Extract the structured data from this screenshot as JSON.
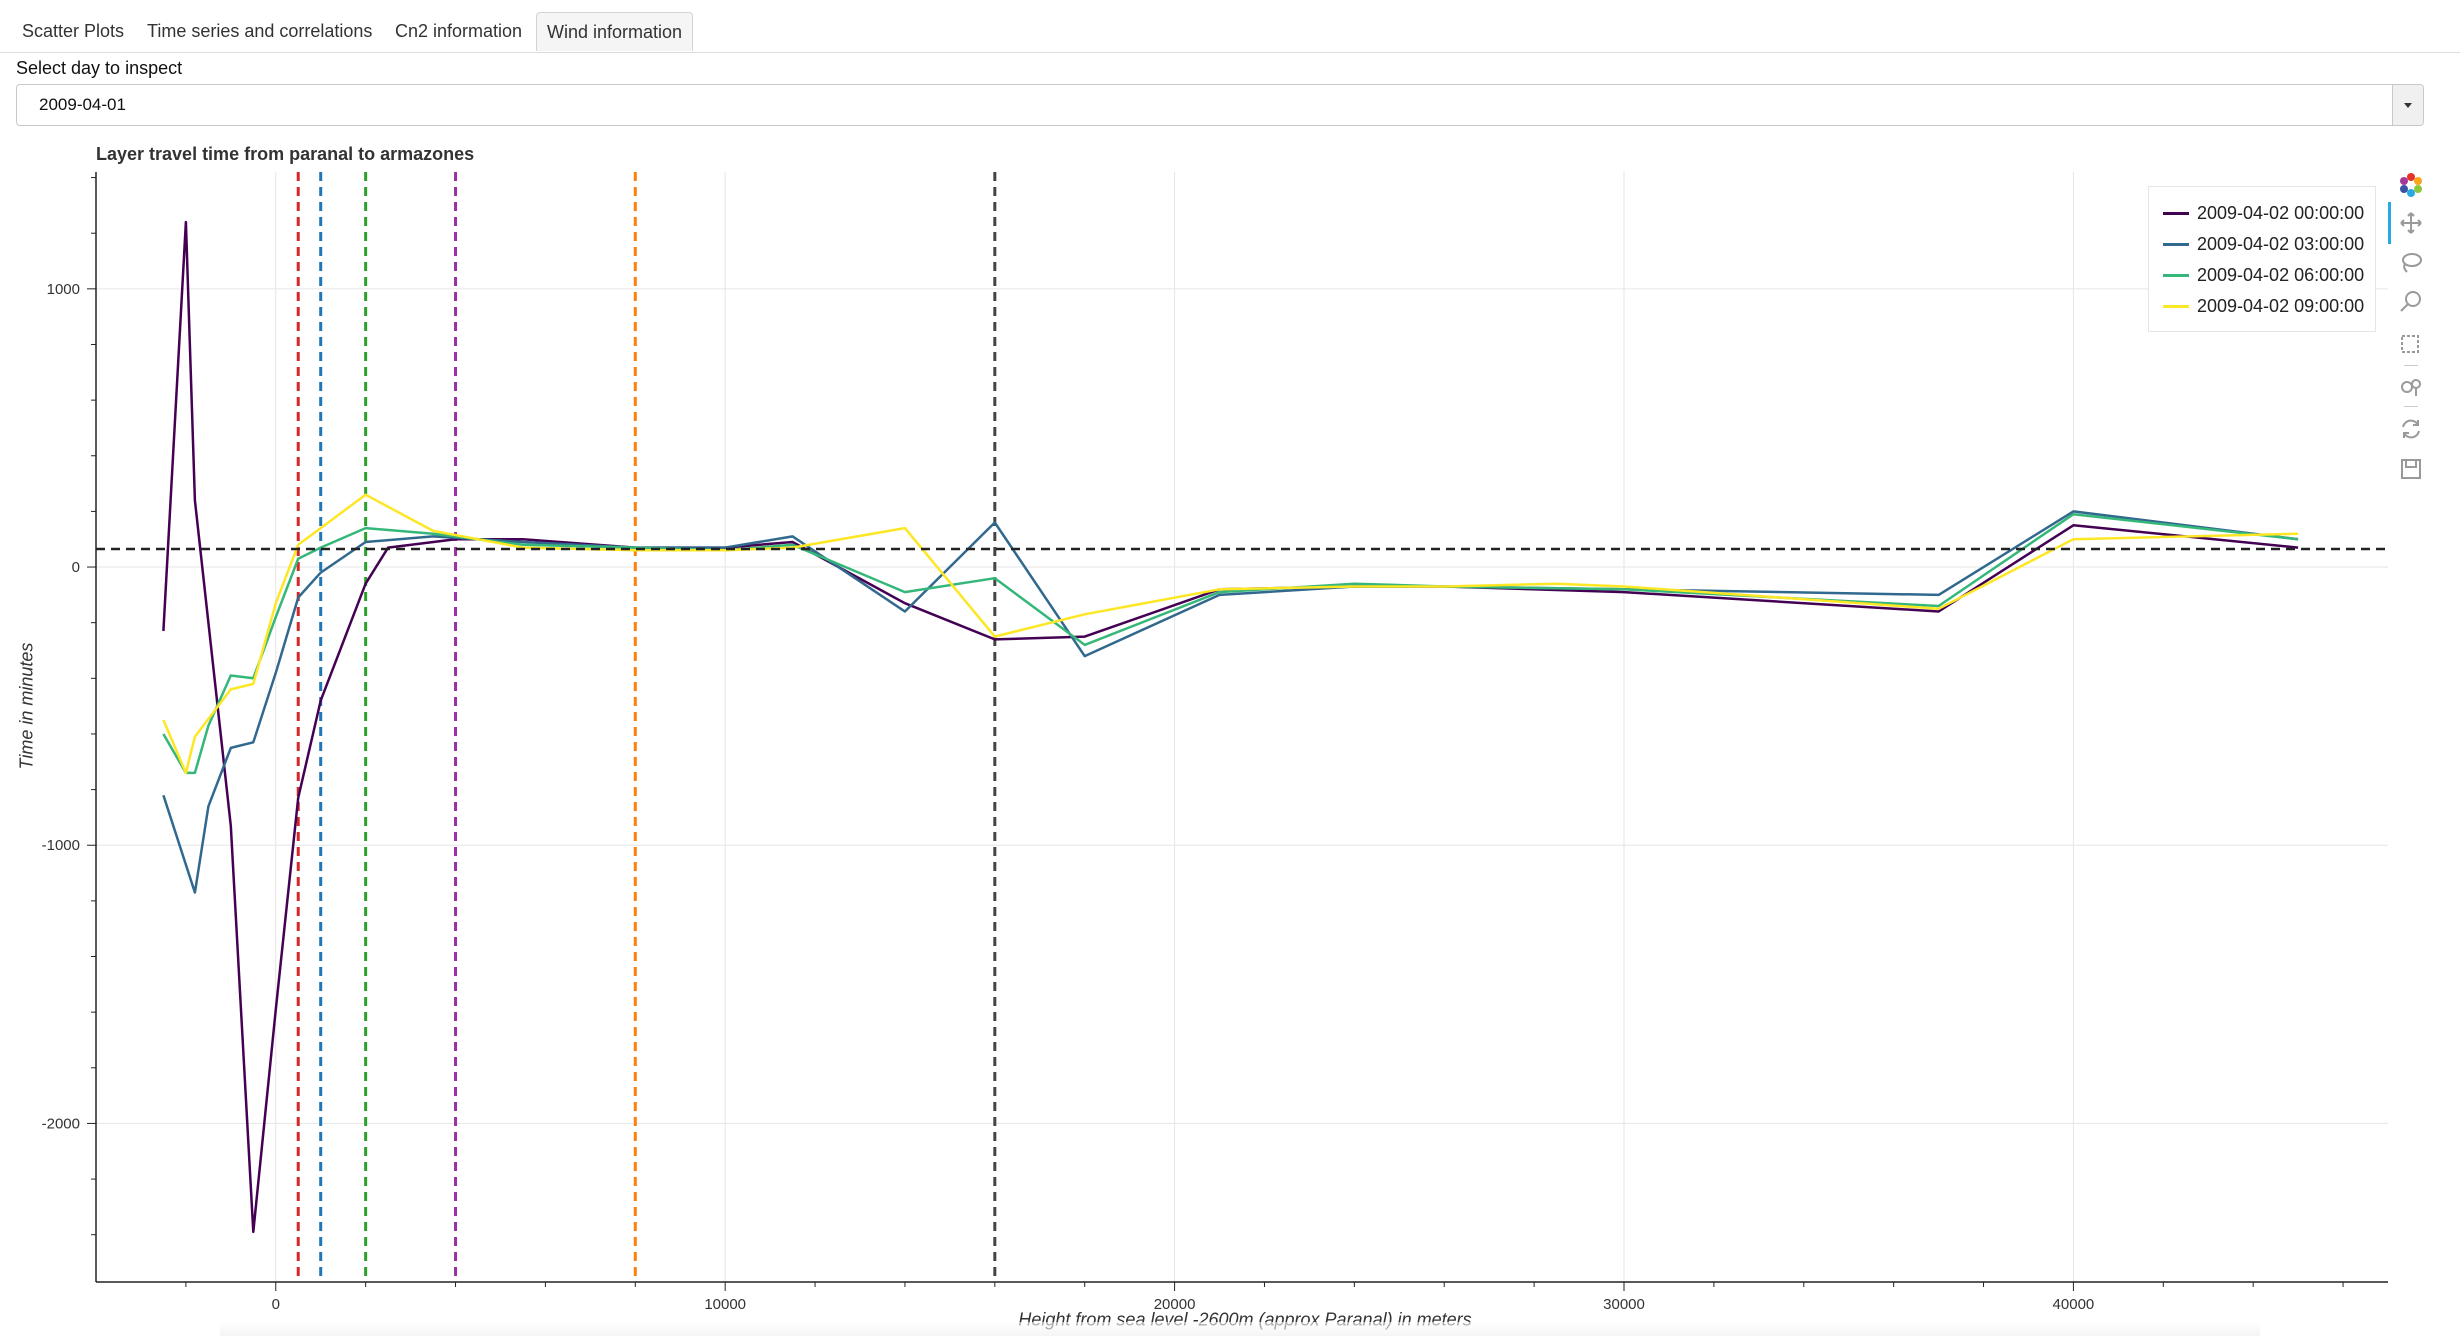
{
  "tabs": [
    {
      "label": "Scatter Plots",
      "active": false
    },
    {
      "label": "Time series and correlations",
      "active": false
    },
    {
      "label": "Cn2 information",
      "active": false
    },
    {
      "label": "Wind information",
      "active": true
    }
  ],
  "select": {
    "label": "Select day to inspect",
    "value": "2009-04-01"
  },
  "toolbar": {
    "tools": [
      "bokeh-logo-icon",
      "pan-icon",
      "lasso-select-icon",
      "wheel-zoom-icon",
      "box-select-icon",
      "tap-icon",
      "reset-icon",
      "save-icon"
    ]
  },
  "chart_data": {
    "type": "line",
    "title": "Layer travel time from paranal to armazones",
    "xlabel": "Height from sea level -2600m (approx Paranal) in meters",
    "ylabel": "Time in minutes",
    "xlim": [
      -4000,
      47000
    ],
    "ylim": [
      -2570,
      1420
    ],
    "x_ticks": [
      0,
      10000,
      20000,
      30000,
      40000
    ],
    "y_ticks": [
      1000,
      0,
      -1000,
      -2000
    ],
    "grid": true,
    "legend_position": "top-right",
    "series": [
      {
        "name": "2009-04-02 00:00:00",
        "color": "#440154",
        "points": [
          [
            -2500,
            -230
          ],
          [
            -2000,
            1240
          ],
          [
            -1800,
            240
          ],
          [
            -1000,
            -930
          ],
          [
            -500,
            -2390
          ],
          [
            0,
            -1590
          ],
          [
            500,
            -830
          ],
          [
            1000,
            -480
          ],
          [
            2000,
            -60
          ],
          [
            2500,
            70
          ],
          [
            4000,
            100
          ],
          [
            5500,
            100
          ],
          [
            8000,
            70
          ],
          [
            10000,
            70
          ],
          [
            11500,
            90
          ],
          [
            14000,
            -130
          ],
          [
            16000,
            -260
          ],
          [
            18000,
            -250
          ],
          [
            21000,
            -80
          ],
          [
            24000,
            -70
          ],
          [
            26000,
            -70
          ],
          [
            30000,
            -90
          ],
          [
            37000,
            -160
          ],
          [
            40000,
            150
          ],
          [
            45000,
            70
          ]
        ]
      },
      {
        "name": "2009-04-02 03:00:00",
        "color": "#31688e",
        "points": [
          [
            -2500,
            -820
          ],
          [
            -1800,
            -1170
          ],
          [
            -1500,
            -860
          ],
          [
            -1000,
            -650
          ],
          [
            -500,
            -630
          ],
          [
            0,
            -380
          ],
          [
            500,
            -110
          ],
          [
            1000,
            -20
          ],
          [
            2000,
            90
          ],
          [
            3500,
            110
          ],
          [
            5500,
            90
          ],
          [
            8000,
            70
          ],
          [
            10000,
            70
          ],
          [
            11500,
            110
          ],
          [
            14000,
            -160
          ],
          [
            16000,
            160
          ],
          [
            18000,
            -320
          ],
          [
            21000,
            -100
          ],
          [
            24000,
            -70
          ],
          [
            26000,
            -70
          ],
          [
            30000,
            -80
          ],
          [
            37000,
            -100
          ],
          [
            40000,
            200
          ],
          [
            45000,
            100
          ]
        ]
      },
      {
        "name": "2009-04-02 06:00:00",
        "color": "#35b779",
        "points": [
          [
            -2500,
            -600
          ],
          [
            -2000,
            -740
          ],
          [
            -1800,
            -740
          ],
          [
            -1500,
            -570
          ],
          [
            -1000,
            -390
          ],
          [
            -500,
            -400
          ],
          [
            0,
            -180
          ],
          [
            500,
            30
          ],
          [
            1000,
            70
          ],
          [
            2000,
            140
          ],
          [
            3500,
            120
          ],
          [
            5500,
            80
          ],
          [
            8000,
            70
          ],
          [
            10000,
            60
          ],
          [
            11500,
            80
          ],
          [
            14000,
            -90
          ],
          [
            16000,
            -40
          ],
          [
            18000,
            -280
          ],
          [
            21000,
            -90
          ],
          [
            24000,
            -60
          ],
          [
            26000,
            -70
          ],
          [
            30000,
            -80
          ],
          [
            37000,
            -140
          ],
          [
            40000,
            190
          ],
          [
            45000,
            100
          ]
        ]
      },
      {
        "name": "2009-04-02 09:00:00",
        "color": "#fde725",
        "points": [
          [
            -2500,
            -550
          ],
          [
            -2000,
            -740
          ],
          [
            -1800,
            -610
          ],
          [
            -1000,
            -440
          ],
          [
            -500,
            -420
          ],
          [
            0,
            -130
          ],
          [
            500,
            80
          ],
          [
            1000,
            140
          ],
          [
            2000,
            260
          ],
          [
            3500,
            130
          ],
          [
            5500,
            70
          ],
          [
            8000,
            60
          ],
          [
            10000,
            60
          ],
          [
            11500,
            70
          ],
          [
            14000,
            140
          ],
          [
            16000,
            -250
          ],
          [
            18000,
            -170
          ],
          [
            21000,
            -80
          ],
          [
            24000,
            -70
          ],
          [
            26000,
            -70
          ],
          [
            28500,
            -60
          ],
          [
            30000,
            -70
          ],
          [
            37000,
            -150
          ],
          [
            40000,
            100
          ],
          [
            45000,
            120
          ]
        ]
      }
    ],
    "vertical_lines": [
      {
        "x": 500,
        "color": "#d62728"
      },
      {
        "x": 1000,
        "color": "#1f77b4"
      },
      {
        "x": 2000,
        "color": "#2ca02c"
      },
      {
        "x": 4000,
        "color": "#9b30a6"
      },
      {
        "x": 8000,
        "color": "#ff7f0e"
      },
      {
        "x": 16000,
        "color": "#444444"
      }
    ],
    "horizontal_lines": [
      {
        "y": 65,
        "color": "#222222"
      }
    ]
  }
}
